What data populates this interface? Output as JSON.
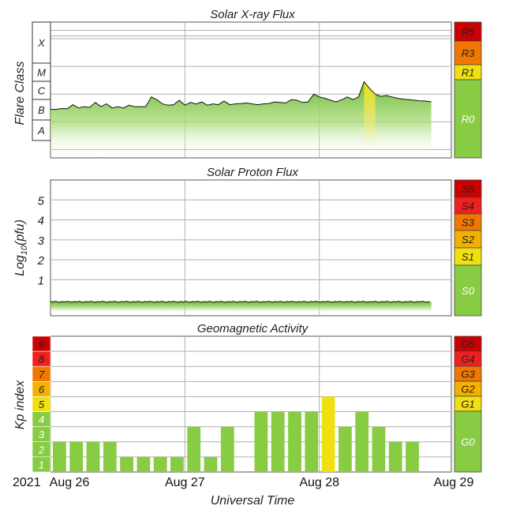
{
  "panels": {
    "xray": {
      "title": "Solar X-ray Flux",
      "ylabel": "Flare Class",
      "classes": [
        "X",
        "M",
        "C",
        "B",
        "A"
      ],
      "scale": [
        {
          "label": "R5",
          "color": "#cc0000"
        },
        {
          "label": "R3",
          "color": "#f07800"
        },
        {
          "label": "R1",
          "color": "#f0e010"
        },
        {
          "label": "R0",
          "color": "#88cc44"
        }
      ]
    },
    "proton": {
      "title": "Solar Proton Flux",
      "ylabel": "Log10(pfu)",
      "ticks": [
        "5",
        "4",
        "3",
        "2",
        "1"
      ],
      "scale": [
        {
          "label": "S5",
          "color": "#cc0000"
        },
        {
          "label": "S4",
          "color": "#ee2020"
        },
        {
          "label": "S3",
          "color": "#f07800"
        },
        {
          "label": "S2",
          "color": "#f4b000"
        },
        {
          "label": "S1",
          "color": "#f0e010"
        },
        {
          "label": "S0",
          "color": "#88cc44"
        }
      ]
    },
    "geomag": {
      "title": "Geomagnetic Activity",
      "ylabel": "Kp index",
      "levels": [
        "9",
        "8",
        "7",
        "6",
        "5",
        "4",
        "3",
        "2",
        "1"
      ],
      "scale": [
        {
          "label": "G5",
          "color": "#cc0000"
        },
        {
          "label": "G4",
          "color": "#ee2020"
        },
        {
          "label": "G3",
          "color": "#f07800"
        },
        {
          "label": "G2",
          "color": "#f4b000"
        },
        {
          "label": "G1",
          "color": "#f0e010"
        },
        {
          "label": "G0",
          "color": "#88cc44"
        }
      ]
    }
  },
  "xaxis": {
    "label": "Universal Time",
    "year": "2021",
    "ticks": [
      "Aug 26",
      "Aug 27",
      "Aug 28",
      "Aug 29"
    ]
  },
  "colors": {
    "green": "#88cc44",
    "yellow": "#f0e010",
    "grid": "#b0b0b0"
  },
  "chart_data": [
    {
      "type": "area",
      "title": "Solar X-ray Flux",
      "ylabel": "Flare Class",
      "x_range": [
        "2021-08-26 00:00",
        "2021-08-29 00:00"
      ],
      "series": [
        {
          "x_hours": [
            0,
            1,
            2,
            3,
            4,
            5,
            6,
            7,
            8,
            9,
            10,
            11,
            12,
            13,
            14,
            15,
            16,
            17,
            18,
            19,
            20,
            21,
            22,
            23,
            24,
            25,
            26,
            27,
            28,
            29,
            30,
            31,
            32,
            33,
            34,
            35,
            36,
            37,
            38,
            39,
            40,
            41,
            42,
            43,
            44,
            45,
            46,
            47,
            48,
            49,
            50,
            51,
            52,
            53,
            54,
            55,
            56,
            57,
            58,
            59,
            60,
            61,
            62,
            63,
            64,
            65,
            66,
            67,
            68
          ],
          "log_flux": [
            -6.55,
            -6.55,
            -6.52,
            -6.53,
            -6.38,
            -6.5,
            -6.45,
            -6.48,
            -6.3,
            -6.45,
            -6.35,
            -6.5,
            -6.45,
            -6.5,
            -6.4,
            -6.45,
            -6.45,
            -6.45,
            -6.1,
            -6.2,
            -6.35,
            -6.4,
            -6.38,
            -6.22,
            -6.4,
            -6.3,
            -6.36,
            -6.28,
            -6.4,
            -6.35,
            -6.38,
            -6.25,
            -6.38,
            -6.35,
            -6.34,
            -6.32,
            -6.35,
            -6.38,
            -6.35,
            -6.34,
            -6.28,
            -6.3,
            -6.32,
            -6.2,
            -6.22,
            -6.3,
            -6.28,
            -6.0,
            -6.1,
            -6.15,
            -6.22,
            -6.28,
            -6.2,
            -6.1,
            -6.2,
            -6.1,
            -5.55,
            -5.8,
            -6.0,
            -6.08,
            -6.05,
            -6.1,
            -6.15,
            -6.18,
            -6.2,
            -6.22,
            -6.24,
            -6.25,
            -6.28
          ]
        }
      ]
    },
    {
      "type": "area",
      "title": "Solar Proton Flux",
      "ylabel": "Log10(pfu)",
      "ylim": [
        -0.8,
        6
      ],
      "x_range": [
        "2021-08-26 00:00",
        "2021-08-29 00:00"
      ],
      "series": [
        {
          "x_hours": [
            0,
            68
          ],
          "log_pfu": [
            -0.1,
            -0.1
          ]
        }
      ]
    },
    {
      "type": "bar",
      "title": "Geomagnetic Activity",
      "ylabel": "Kp index",
      "ylim": [
        0,
        9
      ],
      "categories": [
        "Aug 26 00",
        "Aug 26 03",
        "Aug 26 06",
        "Aug 26 09",
        "Aug 26 12",
        "Aug 26 15",
        "Aug 26 18",
        "Aug 26 21",
        "Aug 27 00",
        "Aug 27 03",
        "Aug 27 06",
        "Aug 27 09",
        "Aug 27 12",
        "Aug 27 15",
        "Aug 27 18",
        "Aug 27 21",
        "Aug 28 00",
        "Aug 28 03",
        "Aug 28 06",
        "Aug 28 09",
        "Aug 28 12",
        "Aug 28 15",
        "Aug 28 18",
        "Aug 28 21"
      ],
      "values": [
        2,
        2,
        2,
        2,
        1,
        1,
        1,
        1,
        3,
        1,
        3,
        null,
        4,
        4,
        4,
        4,
        5,
        3,
        4,
        3,
        2,
        2,
        null,
        null
      ]
    }
  ]
}
